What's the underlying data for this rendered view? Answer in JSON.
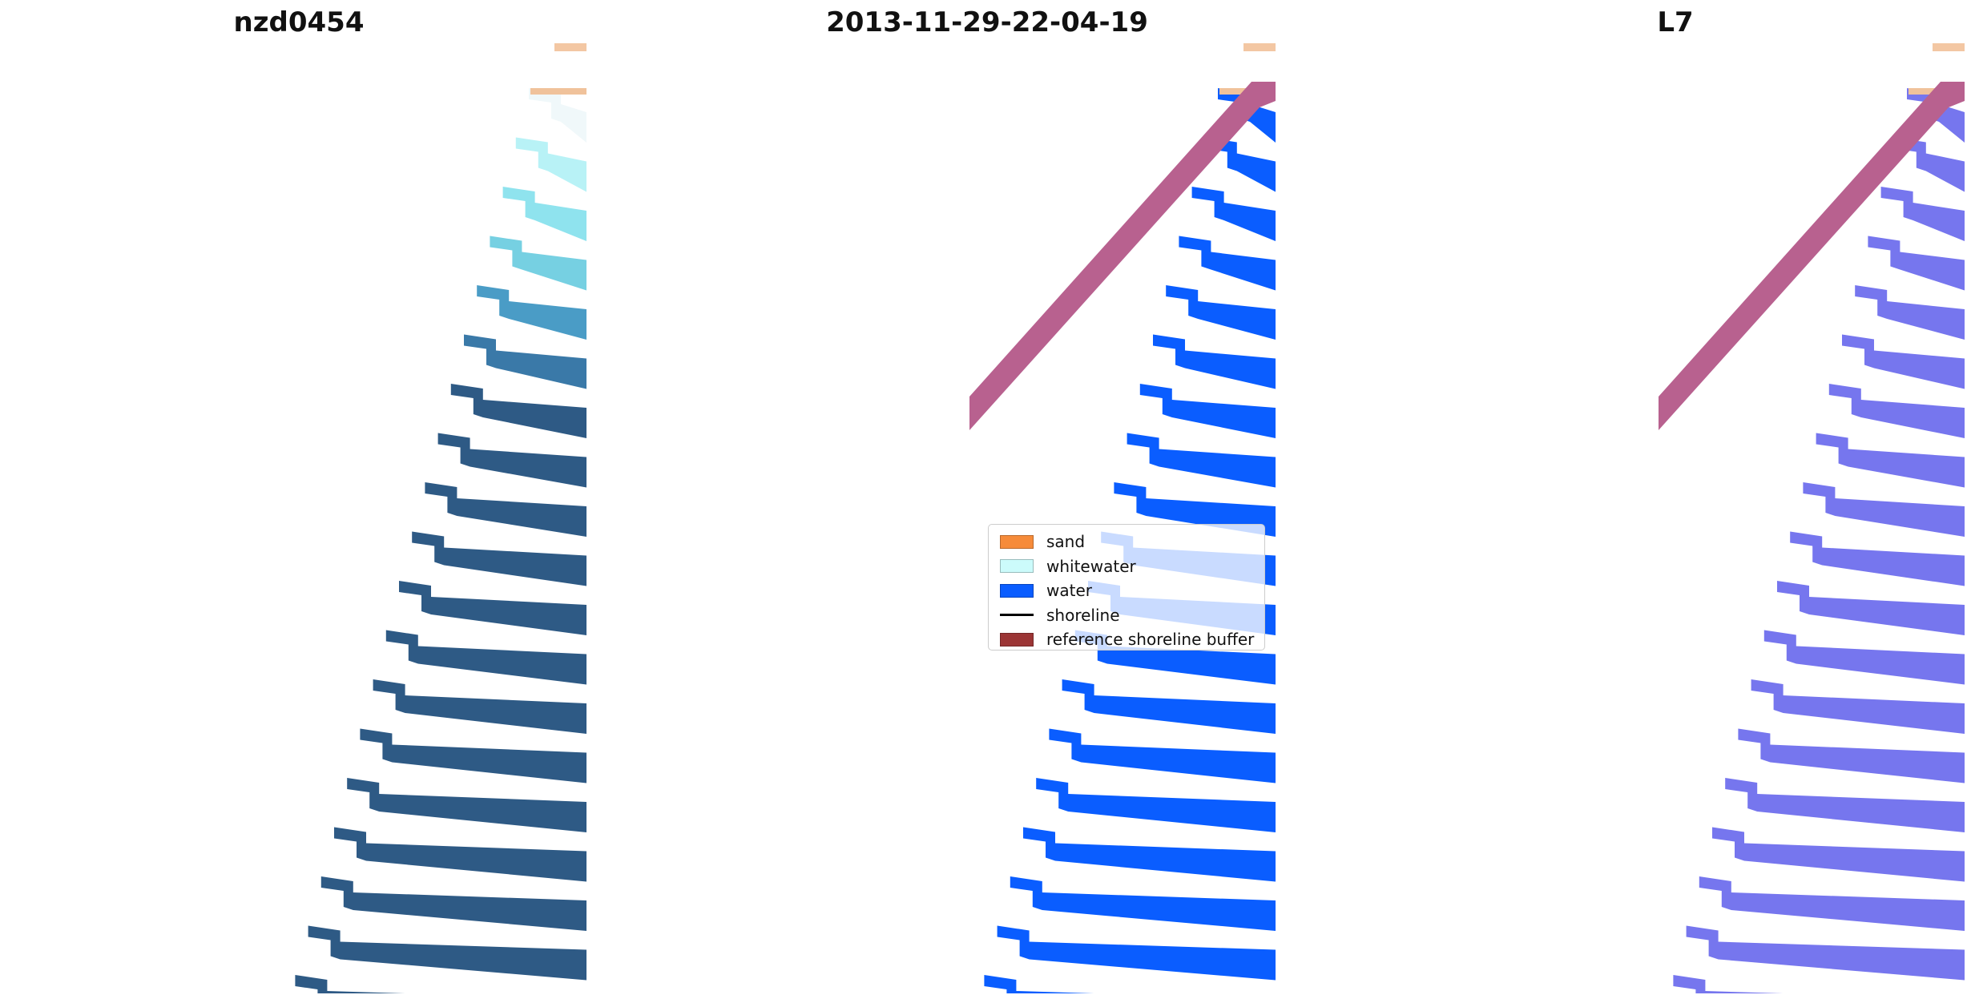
{
  "panels": [
    {
      "title": "nzd0454",
      "bar_color": "#2e5a85",
      "top_colors": [
        "#f0f8fa",
        "#b8f2f6",
        "#8fe3ee",
        "#76d0e2",
        "#4a9cc6",
        "#3a79a8"
      ]
    },
    {
      "title": "2013-11-29-22-04-19",
      "bar_color": "#0a5dff",
      "buffer_color": "#b8618f"
    },
    {
      "title": "L7",
      "bar_color": "#7676ee",
      "buffer_color": "#b8618f"
    }
  ],
  "legend": {
    "items": [
      {
        "label": "sand",
        "color": "#f68b3a"
      },
      {
        "label": "whitewater",
        "color": "#ccfbfb"
      },
      {
        "label": "water",
        "color": "#0a5dff"
      },
      {
        "label": "shoreline",
        "color": "#000000"
      },
      {
        "label": "reference shoreline buffer",
        "color": "#9b3535"
      }
    ]
  }
}
